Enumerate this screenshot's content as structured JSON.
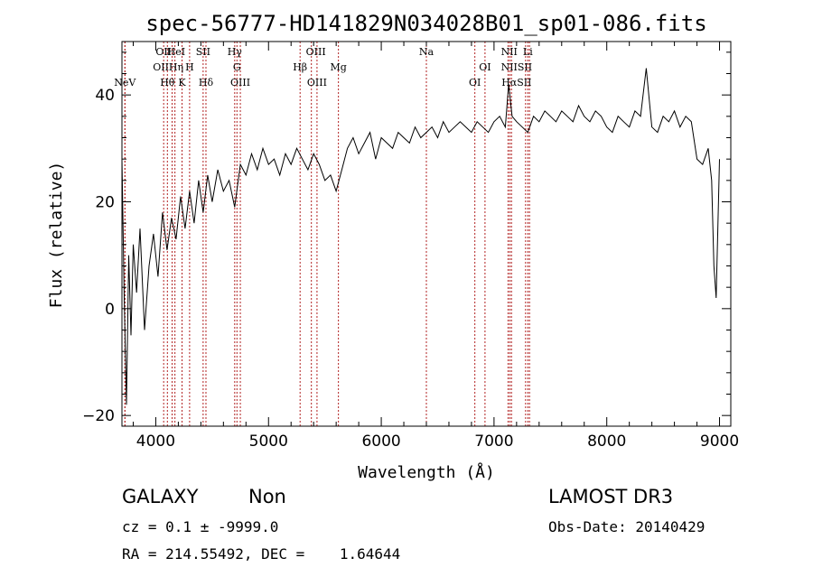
{
  "chart_data": {
    "type": "line",
    "title": "spec-56777-HD141829N034028B01_sp01-086.fits",
    "xlabel": "Wavelength (Å)",
    "ylabel": "Flux (relative)",
    "xlim": [
      3700,
      9100
    ],
    "ylim": [
      -22,
      50
    ],
    "x_ticks": [
      4000,
      5000,
      6000,
      7000,
      8000,
      9000
    ],
    "y_ticks": [
      -20,
      0,
      20,
      40
    ],
    "grid": false,
    "series": [
      {
        "x": [
          3700,
          3720,
          3740,
          3760,
          3780,
          3800,
          3830,
          3860,
          3900,
          3940,
          3980,
          4020,
          4060,
          4100,
          4140,
          4180,
          4220,
          4260,
          4300,
          4340,
          4380,
          4420,
          4460,
          4500,
          4550,
          4600,
          4650,
          4700,
          4750,
          4800,
          4850,
          4900,
          4950,
          5000,
          5050,
          5100,
          5150,
          5200,
          5250,
          5300,
          5350,
          5400,
          5450,
          5500,
          5550,
          5600,
          5650,
          5700,
          5750,
          5800,
          5850,
          5900,
          5950,
          6000,
          6050,
          6100,
          6150,
          6200,
          6250,
          6300,
          6350,
          6400,
          6450,
          6500,
          6550,
          6600,
          6650,
          6700,
          6750,
          6800,
          6850,
          6900,
          6950,
          7000,
          7050,
          7100,
          7130,
          7160,
          7200,
          7250,
          7300,
          7350,
          7400,
          7450,
          7500,
          7550,
          7600,
          7650,
          7700,
          7750,
          7800,
          7850,
          7900,
          7950,
          8000,
          8050,
          8100,
          8150,
          8200,
          8250,
          8300,
          8350,
          8400,
          8450,
          8500,
          8550,
          8600,
          8650,
          8700,
          8750,
          8800,
          8850,
          8900,
          8930,
          8950,
          8970,
          9000
        ],
        "y": [
          28,
          2,
          -18,
          10,
          -5,
          12,
          3,
          15,
          -4,
          8,
          14,
          6,
          18,
          11,
          17,
          13,
          21,
          15,
          22,
          16,
          24,
          18,
          25,
          20,
          26,
          22,
          24,
          19,
          27,
          25,
          29,
          26,
          30,
          27,
          28,
          25,
          29,
          27,
          30,
          28,
          26,
          29,
          27,
          24,
          25,
          22,
          26,
          30,
          32,
          29,
          31,
          33,
          28,
          32,
          31,
          30,
          33,
          32,
          31,
          34,
          32,
          33,
          34,
          32,
          35,
          33,
          34,
          35,
          34,
          33,
          35,
          34,
          33,
          35,
          36,
          34,
          42,
          36,
          35,
          34,
          33,
          36,
          35,
          37,
          36,
          35,
          37,
          36,
          35,
          38,
          36,
          35,
          37,
          36,
          34,
          33,
          36,
          35,
          34,
          37,
          36,
          45,
          34,
          33,
          36,
          35,
          37,
          34,
          36,
          35,
          28,
          27,
          30,
          24,
          8,
          2,
          28
        ]
      }
    ],
    "spectral_lines": [
      {
        "name": "NeV",
        "x": 3726
      },
      {
        "name": "OII",
        "x": 3727
      },
      {
        "name": "OII",
        "x": 4070
      },
      {
        "name": "Hθ",
        "x": 4103
      },
      {
        "name": "He I",
        "x": 4145
      },
      {
        "name": "Hη",
        "x": 4170
      },
      {
        "name": "K",
        "x": 4233
      },
      {
        "name": "H",
        "x": 4300
      },
      {
        "name": "SII",
        "x": 4420
      },
      {
        "name": "Hδ",
        "x": 4445
      },
      {
        "name": "Hγ",
        "x": 4700
      },
      {
        "name": "G",
        "x": 4720
      },
      {
        "name": "OIII",
        "x": 4750
      },
      {
        "name": "Hβ",
        "x": 5280
      },
      {
        "name": "OIII",
        "x": 5380
      },
      {
        "name": "OIII",
        "x": 5430
      },
      {
        "name": "Mg",
        "x": 5620
      },
      {
        "name": "Na",
        "x": 6400
      },
      {
        "name": "OI",
        "x": 6830
      },
      {
        "name": "OI",
        "x": 6920
      },
      {
        "name": "NII",
        "x": 7125
      },
      {
        "name": "Hα",
        "x": 7140
      },
      {
        "name": "NII",
        "x": 7155
      },
      {
        "name": "SII",
        "x": 7280
      },
      {
        "name": "Li",
        "x": 7300
      },
      {
        "name": "SII",
        "x": 7315
      }
    ],
    "line_labels": [
      {
        "text": "NeV",
        "x": 3726,
        "row": 3
      },
      {
        "text": "OII",
        "x": 4070,
        "row": 1
      },
      {
        "text": "HeI",
        "x": 4180,
        "row": 1
      },
      {
        "text": "SII",
        "x": 4420,
        "row": 1
      },
      {
        "text": "Hγ",
        "x": 4700,
        "row": 1
      },
      {
        "text": "OIII",
        "x": 5420,
        "row": 1
      },
      {
        "text": "Na",
        "x": 6400,
        "row": 1
      },
      {
        "text": "NII",
        "x": 7135,
        "row": 1
      },
      {
        "text": "Li",
        "x": 7300,
        "row": 1
      },
      {
        "text": "OIIHη",
        "x": 4110,
        "row": 2
      },
      {
        "text": "H",
        "x": 4300,
        "row": 2
      },
      {
        "text": "G",
        "x": 4720,
        "row": 2
      },
      {
        "text": "Hβ",
        "x": 5280,
        "row": 2
      },
      {
        "text": "Mg",
        "x": 5620,
        "row": 2
      },
      {
        "text": "OI",
        "x": 6920,
        "row": 2
      },
      {
        "text": "NIISII",
        "x": 7200,
        "row": 2
      },
      {
        "text": "Hθ",
        "x": 4103,
        "row": 3
      },
      {
        "text": "K",
        "x": 4233,
        "row": 3
      },
      {
        "text": "Hδ",
        "x": 4445,
        "row": 3
      },
      {
        "text": "OIII",
        "x": 4750,
        "row": 3
      },
      {
        "text": "OIII",
        "x": 5430,
        "row": 3
      },
      {
        "text": "OI",
        "x": 6830,
        "row": 3
      },
      {
        "text": "HαSII",
        "x": 7200,
        "row": 3
      }
    ],
    "line_color": "#b22222",
    "spectrum_color": "#000000"
  },
  "info": {
    "class_label": "GALAXY",
    "subclass_label": "Non",
    "survey_label": "LAMOST DR3",
    "cz_line": "cz = 0.1 ± -9999.0",
    "obs_date_line": "Obs-Date: 20140429",
    "radec_line": "RA = 214.55492, DEC =    1.64644"
  }
}
